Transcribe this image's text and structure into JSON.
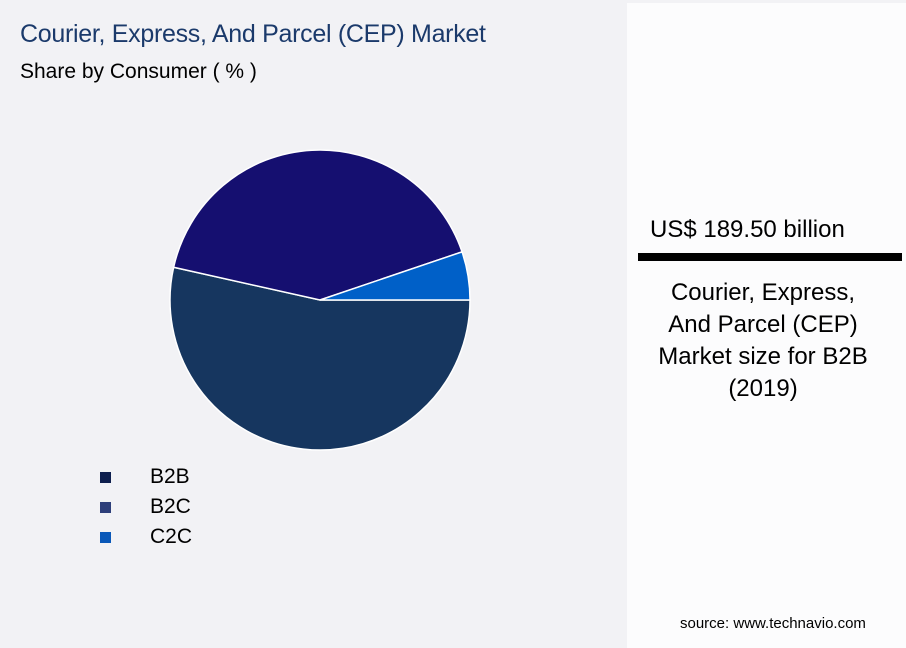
{
  "header": {
    "title": "Courier, Express, And Parcel (CEP) Market",
    "subtitle": "Share by Consumer ( % )"
  },
  "legend": {
    "items": [
      {
        "label": "B2B",
        "color": "#0e1f4e"
      },
      {
        "label": "B2C",
        "color": "#2e3f7a"
      },
      {
        "label": "C2C",
        "color": "#0a58b8"
      }
    ]
  },
  "panel": {
    "value": "US$ 189.50 billion",
    "description_lines": [
      "Courier, Express,",
      "And Parcel (CEP)",
      "Market size for B2B",
      "(2019)"
    ],
    "source": "source: www.technavio.com"
  },
  "chart_data": {
    "type": "pie",
    "title": "Courier, Express, And Parcel (CEP) Market",
    "subtitle": "Share by Consumer ( % )",
    "categories": [
      "B2B",
      "B2C",
      "C2C"
    ],
    "values": [
      53.5,
      41.3,
      5.2
    ],
    "colors": [
      "#16365f",
      "#150f70",
      "#0060c8"
    ],
    "legend_position": "bottom-left",
    "annotation": "US$ 189.50 billion — Courier, Express, And Parcel (CEP) Market size for B2B (2019)"
  }
}
